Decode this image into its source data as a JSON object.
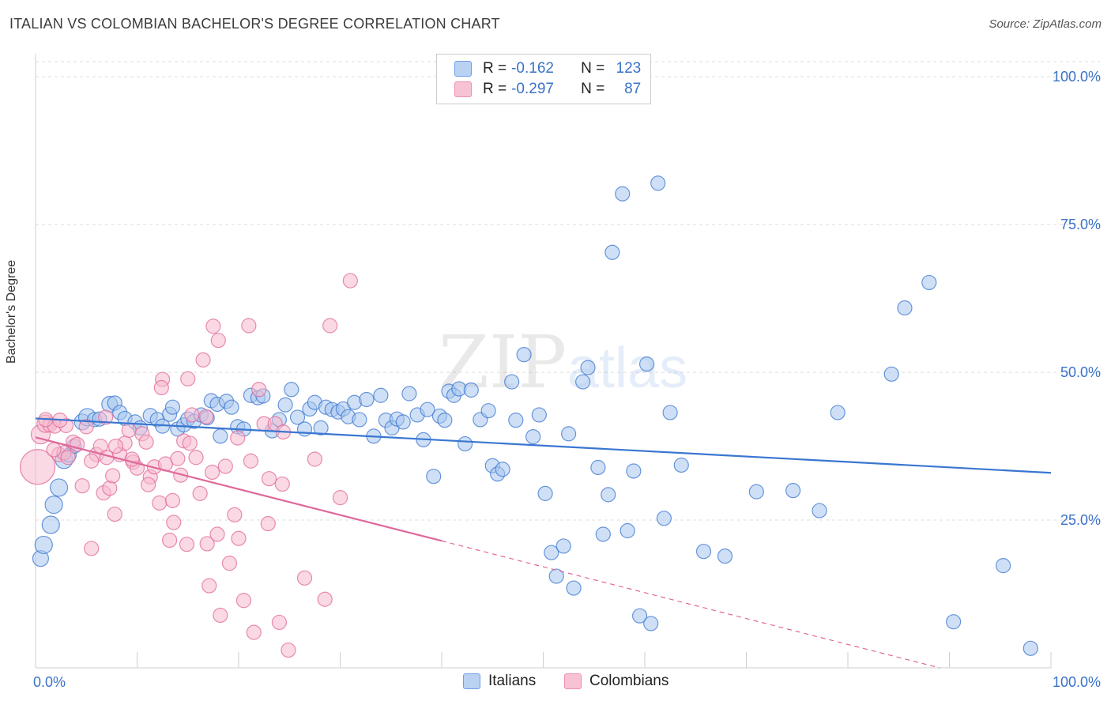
{
  "title": "ITALIAN VS COLOMBIAN BACHELOR'S DEGREE CORRELATION CHART",
  "source": "Source: ZipAtlas.com",
  "watermark": {
    "zip": "ZIP",
    "atlas": "atlas"
  },
  "legend": {
    "rows": [
      {
        "r_label": "R =",
        "r_value": "-0.162",
        "n_label": "N =",
        "n_value": "123",
        "color": "#6fa0e6",
        "fill": "#b9d1f3"
      },
      {
        "r_label": "R =",
        "r_value": "-0.297",
        "n_label": "N =",
        "n_value": "87",
        "color": "#ee8faf",
        "fill": "#f7c3d4"
      }
    ]
  },
  "bottom_legend": [
    "Italians",
    "Colombians"
  ],
  "chart_data": {
    "type": "scatter",
    "xlabel": "",
    "ylabel": "Bachelor's Degree",
    "xlim": [
      0,
      100
    ],
    "ylim": [
      0,
      100
    ],
    "x_tick_labels": [
      "0.0%",
      "100.0%"
    ],
    "y_tick_labels": [
      "25.0%",
      "50.0%",
      "75.0%",
      "100.0%"
    ],
    "y_ticks": [
      25,
      50,
      75,
      100
    ],
    "grid": "horizontal dashed",
    "legend_position": "top-center",
    "series": [
      {
        "name": "Italians",
        "color": "#3a76d0",
        "fill": "#a8c6ef",
        "trend": {
          "x0": 0,
          "y0": 42.2,
          "x1": 100,
          "y1": 33.0,
          "solid_until": 100
        },
        "points": [
          [
            0.5,
            18.5,
            10
          ],
          [
            0.8,
            20.8,
            11
          ],
          [
            1.5,
            24.2,
            11
          ],
          [
            1.8,
            27.6,
            11
          ],
          [
            2.3,
            30.5,
            11
          ],
          [
            2.8,
            35.2,
            11
          ],
          [
            3.3,
            36.0,
            9
          ],
          [
            3.8,
            37.5,
            9
          ],
          [
            4.6,
            41.6,
            10
          ],
          [
            5.1,
            42.4,
            11
          ],
          [
            5.8,
            42.0,
            9
          ],
          [
            6.3,
            42.1,
            9
          ],
          [
            7.3,
            44.6,
            10
          ],
          [
            7.8,
            44.8,
            9
          ],
          [
            8.3,
            43.2,
            9
          ],
          [
            8.8,
            42.2,
            9
          ],
          [
            9.8,
            41.6,
            9
          ],
          [
            10.3,
            40.6,
            9
          ],
          [
            11.3,
            42.7,
            9
          ],
          [
            12.0,
            42.0,
            9
          ],
          [
            12.5,
            40.9,
            9
          ],
          [
            13.2,
            42.9,
            9
          ],
          [
            13.5,
            44.1,
            9
          ],
          [
            14.0,
            40.4,
            9
          ],
          [
            14.6,
            41.1,
            9
          ],
          [
            15.0,
            42.1,
            9
          ],
          [
            15.6,
            41.7,
            9
          ],
          [
            16.3,
            42.8,
            9
          ],
          [
            16.9,
            42.3,
            9
          ],
          [
            17.3,
            45.2,
            9
          ],
          [
            17.9,
            44.6,
            9
          ],
          [
            18.2,
            39.2,
            9
          ],
          [
            18.8,
            45.1,
            9
          ],
          [
            19.3,
            44.1,
            9
          ],
          [
            19.9,
            40.8,
            9
          ],
          [
            20.5,
            40.4,
            9
          ],
          [
            21.2,
            46.1,
            9
          ],
          [
            21.9,
            45.7,
            9
          ],
          [
            22.4,
            46.0,
            9
          ],
          [
            23.3,
            40.1,
            9
          ],
          [
            24.0,
            42.0,
            9
          ],
          [
            24.6,
            44.5,
            9
          ],
          [
            25.2,
            47.1,
            9
          ],
          [
            25.8,
            42.4,
            9
          ],
          [
            26.5,
            40.4,
            9
          ],
          [
            27.0,
            43.8,
            9
          ],
          [
            27.5,
            44.9,
            9
          ],
          [
            28.1,
            40.6,
            9
          ],
          [
            28.6,
            44.1,
            9
          ],
          [
            29.2,
            43.7,
            9
          ],
          [
            29.8,
            43.3,
            9
          ],
          [
            30.3,
            43.8,
            9
          ],
          [
            30.8,
            42.5,
            9
          ],
          [
            31.4,
            44.9,
            9
          ],
          [
            31.9,
            42.0,
            9
          ],
          [
            32.6,
            45.4,
            9
          ],
          [
            33.3,
            39.2,
            9
          ],
          [
            34.0,
            46.1,
            9
          ],
          [
            34.5,
            41.9,
            9
          ],
          [
            35.1,
            40.6,
            9
          ],
          [
            35.6,
            42.1,
            9
          ],
          [
            36.2,
            41.6,
            9
          ],
          [
            36.8,
            46.4,
            9
          ],
          [
            37.6,
            42.8,
            9
          ],
          [
            38.2,
            38.6,
            9
          ],
          [
            38.6,
            43.7,
            9
          ],
          [
            39.2,
            32.4,
            9
          ],
          [
            39.8,
            42.6,
            9
          ],
          [
            40.3,
            41.9,
            9
          ],
          [
            40.7,
            46.8,
            9
          ],
          [
            41.2,
            46.1,
            9
          ],
          [
            41.7,
            47.2,
            9
          ],
          [
            42.3,
            37.9,
            9
          ],
          [
            42.9,
            47.0,
            9
          ],
          [
            43.8,
            42.0,
            9
          ],
          [
            44.6,
            43.5,
            9
          ],
          [
            45.0,
            34.2,
            9
          ],
          [
            45.5,
            32.8,
            9
          ],
          [
            46.0,
            33.6,
            9
          ],
          [
            46.9,
            48.4,
            9
          ],
          [
            47.3,
            41.9,
            9
          ],
          [
            48.1,
            53.0,
            9
          ],
          [
            49.0,
            39.1,
            9
          ],
          [
            49.6,
            42.8,
            9
          ],
          [
            50.2,
            29.5,
            9
          ],
          [
            50.8,
            19.5,
            9
          ],
          [
            51.3,
            15.5,
            9
          ],
          [
            52.0,
            20.6,
            9
          ],
          [
            52.5,
            39.6,
            9
          ],
          [
            53.0,
            13.5,
            9
          ],
          [
            53.9,
            48.4,
            9
          ],
          [
            54.4,
            50.8,
            9
          ],
          [
            55.4,
            33.9,
            9
          ],
          [
            55.9,
            22.6,
            9
          ],
          [
            56.8,
            70.3,
            9
          ],
          [
            56.4,
            29.3,
            9
          ],
          [
            57.8,
            80.2,
            9
          ],
          [
            58.3,
            23.2,
            9
          ],
          [
            58.9,
            33.3,
            9
          ],
          [
            59.5,
            8.8,
            9
          ],
          [
            60.2,
            51.4,
            9
          ],
          [
            60.6,
            7.5,
            9
          ],
          [
            61.3,
            82.0,
            9
          ],
          [
            61.9,
            25.3,
            9
          ],
          [
            62.5,
            43.2,
            9
          ],
          [
            63.6,
            34.3,
            9
          ],
          [
            65.8,
            19.7,
            9
          ],
          [
            67.9,
            18.9,
            9
          ],
          [
            71.0,
            29.8,
            9
          ],
          [
            74.6,
            30.0,
            9
          ],
          [
            77.2,
            26.6,
            9
          ],
          [
            79.0,
            43.2,
            9
          ],
          [
            84.3,
            49.7,
            9
          ],
          [
            85.6,
            60.9,
            9
          ],
          [
            88.0,
            65.2,
            9
          ],
          [
            90.4,
            7.8,
            9
          ],
          [
            95.3,
            17.3,
            9
          ],
          [
            98.0,
            3.3,
            9
          ]
        ]
      },
      {
        "name": "Colombians",
        "color": "#e0679a",
        "fill": "#f5b9cd",
        "trend": {
          "x0": 0,
          "y0": 39.0,
          "x1": 100,
          "y1": -4.8,
          "solid_until": 40
        },
        "points": [
          [
            0.2,
            34.0,
            22
          ],
          [
            0.5,
            39.5,
            12
          ],
          [
            1.0,
            41.3,
            11
          ],
          [
            1.4,
            41.1,
            9
          ],
          [
            1.9,
            40.9,
            9
          ],
          [
            2.3,
            36.1,
            9
          ],
          [
            2.8,
            36.4,
            9
          ],
          [
            3.2,
            35.6,
            9
          ],
          [
            3.7,
            38.2,
            9
          ],
          [
            4.1,
            37.8,
            9
          ],
          [
            4.6,
            30.8,
            9
          ],
          [
            5.0,
            40.8,
            9
          ],
          [
            5.5,
            20.2,
            9
          ],
          [
            6.0,
            36.1,
            9
          ],
          [
            6.4,
            37.5,
            9
          ],
          [
            6.7,
            29.6,
            9
          ],
          [
            7.0,
            35.6,
            9
          ],
          [
            7.3,
            30.4,
            9
          ],
          [
            7.6,
            32.5,
            9
          ],
          [
            7.8,
            26.0,
            9
          ],
          [
            8.3,
            36.1,
            9
          ],
          [
            8.8,
            38.0,
            9
          ],
          [
            9.2,
            40.2,
            9
          ],
          [
            9.6,
            34.8,
            9
          ],
          [
            10.0,
            33.8,
            9
          ],
          [
            10.5,
            39.6,
            9
          ],
          [
            10.9,
            38.2,
            9
          ],
          [
            11.3,
            32.3,
            9
          ],
          [
            11.7,
            34.0,
            9
          ],
          [
            12.2,
            27.9,
            9
          ],
          [
            12.5,
            48.8,
            9
          ],
          [
            12.8,
            34.5,
            9
          ],
          [
            13.2,
            21.6,
            9
          ],
          [
            13.6,
            24.6,
            9
          ],
          [
            14.0,
            35.4,
            9
          ],
          [
            14.3,
            32.6,
            9
          ],
          [
            14.6,
            38.4,
            9
          ],
          [
            15.0,
            48.9,
            9
          ],
          [
            15.4,
            42.8,
            9
          ],
          [
            15.8,
            35.6,
            9
          ],
          [
            16.2,
            29.5,
            9
          ],
          [
            16.5,
            52.1,
            9
          ],
          [
            16.9,
            21.0,
            9
          ],
          [
            17.1,
            13.9,
            9
          ],
          [
            17.5,
            57.8,
            9
          ],
          [
            17.9,
            22.6,
            9
          ],
          [
            18.2,
            8.9,
            9
          ],
          [
            18.7,
            34.1,
            9
          ],
          [
            19.1,
            17.7,
            9
          ],
          [
            19.6,
            25.9,
            9
          ],
          [
            20.0,
            21.9,
            9
          ],
          [
            20.5,
            11.4,
            9
          ],
          [
            21.0,
            57.9,
            9
          ],
          [
            21.5,
            6.0,
            9
          ],
          [
            22.0,
            47.1,
            9
          ],
          [
            22.5,
            41.3,
            9
          ],
          [
            23.0,
            32.0,
            9
          ],
          [
            23.6,
            41.3,
            9
          ],
          [
            24.0,
            7.7,
            9
          ],
          [
            24.3,
            31.1,
            9
          ],
          [
            24.9,
            3.0,
            9
          ],
          [
            26.5,
            15.2,
            9
          ],
          [
            27.5,
            35.3,
            9
          ],
          [
            28.5,
            11.6,
            9
          ],
          [
            29.0,
            57.9,
            9
          ],
          [
            30.0,
            28.8,
            9
          ],
          [
            31.0,
            65.5,
            9
          ],
          [
            1.0,
            42.0,
            9
          ],
          [
            3.0,
            41.0,
            9
          ],
          [
            5.5,
            35.0,
            9
          ],
          [
            7.9,
            37.5,
            9
          ],
          [
            9.5,
            35.3,
            9
          ],
          [
            11.1,
            31.0,
            9
          ],
          [
            13.5,
            28.3,
            9
          ],
          [
            14.9,
            20.9,
            9
          ],
          [
            18.0,
            55.4,
            9
          ],
          [
            19.9,
            38.9,
            9
          ],
          [
            21.2,
            35.0,
            9
          ],
          [
            22.9,
            24.4,
            9
          ],
          [
            24.4,
            39.9,
            9
          ],
          [
            12.4,
            47.4,
            9
          ],
          [
            16.8,
            42.5,
            9
          ],
          [
            15.2,
            38.0,
            9
          ],
          [
            17.4,
            33.1,
            9
          ],
          [
            1.8,
            36.9,
            9
          ],
          [
            2.4,
            41.9,
            9
          ],
          [
            6.9,
            42.4,
            9
          ]
        ]
      }
    ]
  }
}
